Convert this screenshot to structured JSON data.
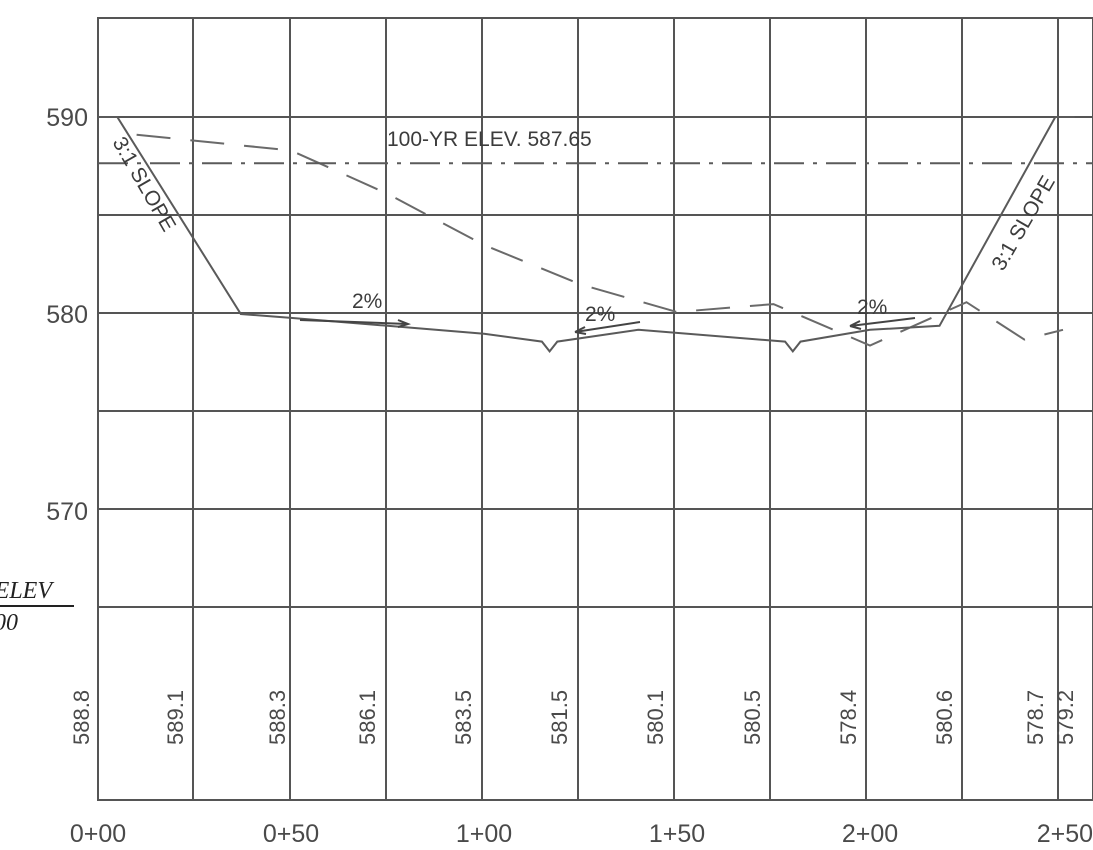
{
  "chart_data": {
    "type": "cross-section",
    "y_ticks": [
      "590",
      "580",
      "570"
    ],
    "x_ticks": [
      "0+00",
      "0+50",
      "1+00",
      "1+50",
      "2+00",
      "2+50"
    ],
    "ylim": [
      565,
      595
    ],
    "xlim": [
      0,
      250
    ],
    "water_surface": {
      "label": "100-YR ELEV. 587.65",
      "elevation": 587.65
    },
    "slope_labels": [
      "3:1 SLOPE",
      "3:1 SLOPE"
    ],
    "grade_labels": [
      "2%",
      "2%",
      "2%"
    ],
    "row_header": {
      "top": "ELEV",
      "bottom": "00"
    },
    "existing_elevations": [
      "588.8",
      "589.1",
      "588.3",
      "586.1",
      "583.5",
      "581.5",
      "580.1",
      "580.5",
      "578.4",
      "580.6",
      "578.7",
      "579.2"
    ],
    "proposed_section": {
      "x": [
        0,
        5,
        37,
        50,
        75,
        100,
        115,
        117,
        119,
        140,
        178,
        180,
        182,
        200,
        218,
        248,
        253
      ],
      "y": [
        590,
        590,
        580,
        579.8,
        579.4,
        579.0,
        578.6,
        578.1,
        578.6,
        579.2,
        578.6,
        578.1,
        578.6,
        579.2,
        579.4,
        590,
        590
      ]
    },
    "existing_ground": {
      "x": [
        10,
        50,
        75,
        100,
        125,
        150,
        175,
        200,
        225,
        240,
        250
      ],
      "y": [
        589.1,
        588.3,
        586.1,
        583.5,
        581.5,
        580.1,
        580.5,
        578.4,
        580.6,
        578.7,
        579.2
      ]
    }
  }
}
